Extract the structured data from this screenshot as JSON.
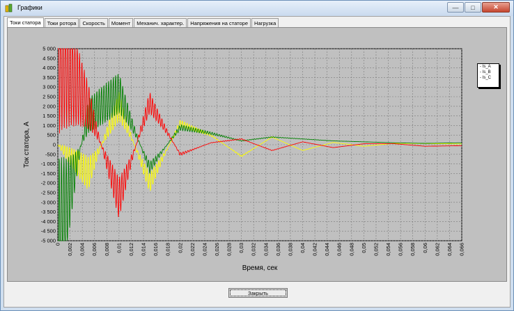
{
  "window": {
    "title": "Графики"
  },
  "window_controls": {
    "minimize": "—",
    "maximize": "□",
    "close": "✕"
  },
  "tabs": [
    {
      "label": "Токи статора",
      "active": true
    },
    {
      "label": "Токи ротора",
      "active": false
    },
    {
      "label": "Скорость",
      "active": false
    },
    {
      "label": "Момент",
      "active": false
    },
    {
      "label": "Механич. характер.",
      "active": false
    },
    {
      "label": "Напряжения на статоре",
      "active": false
    },
    {
      "label": "Нагрузка",
      "active": false
    }
  ],
  "buttons": {
    "close_label": "Закрыть"
  },
  "chart_data": {
    "type": "line",
    "xlabel": "Время, сек",
    "ylabel": "Ток статора, А",
    "xlim": [
      0,
      0.066
    ],
    "ylim": [
      -5000,
      5000
    ],
    "x_ticks": [
      "0",
      "0,002",
      "0,004",
      "0,006",
      "0,008",
      "0,01",
      "0,012",
      "0,014",
      "0,016",
      "0,018",
      "0,02",
      "0,022",
      "0,024",
      "0,026",
      "0,028",
      "0,03",
      "0,032",
      "0,034",
      "0,036",
      "0,038",
      "0,04",
      "0,042",
      "0,044",
      "0,046",
      "0,048",
      "0,05",
      "0,052",
      "0,054",
      "0,056",
      "0,058",
      "0,06",
      "0,062",
      "0,064",
      "0,066"
    ],
    "y_ticks": [
      "5 000",
      "4 500",
      "4 000",
      "3 500",
      "3 000",
      "2 500",
      "2 000",
      "1 500",
      "1 000",
      "500",
      "0",
      "-500",
      "-1 000",
      "-1 500",
      "-2 000",
      "-2 500",
      "-3 000",
      "-3 500",
      "-4 000",
      "-4 500",
      "-5 000"
    ],
    "grid": true,
    "legend_position": "top-right",
    "colors": {
      "Is_A": "#ff0000",
      "Is_B": "#ffff00",
      "Is_C": "#008000"
    },
    "series": [
      {
        "name": "Is_A",
        "color": "#ff0000",
        "x": [
          0,
          0.005,
          0.01,
          0.015,
          0.02,
          0.025,
          0.03,
          0.035,
          0.04,
          0.045,
          0.05,
          0.055,
          0.06,
          0.066
        ],
        "y": [
          5000,
          2000,
          -2800,
          2200,
          -500,
          100,
          300,
          -300,
          150,
          -150,
          50,
          50,
          -80,
          -50
        ]
      },
      {
        "name": "Is_B",
        "color": "#ffff00",
        "x": [
          0,
          0.005,
          0.01,
          0.015,
          0.02,
          0.025,
          0.03,
          0.035,
          0.04,
          0.045,
          0.05,
          0.055,
          0.06,
          0.066
        ],
        "y": [
          0,
          -1500,
          2000,
          -2000,
          1100,
          500,
          -600,
          400,
          -300,
          120,
          -80,
          70,
          60,
          40
        ]
      },
      {
        "name": "Is_C",
        "color": "#008000",
        "x": [
          0,
          0.005,
          0.01,
          0.015,
          0.02,
          0.025,
          0.03,
          0.035,
          0.04,
          0.045,
          0.05,
          0.055,
          0.06,
          0.066
        ],
        "y": [
          -5000,
          1500,
          2700,
          -1200,
          900,
          600,
          200,
          400,
          300,
          200,
          150,
          100,
          70,
          100
        ]
      }
    ]
  }
}
